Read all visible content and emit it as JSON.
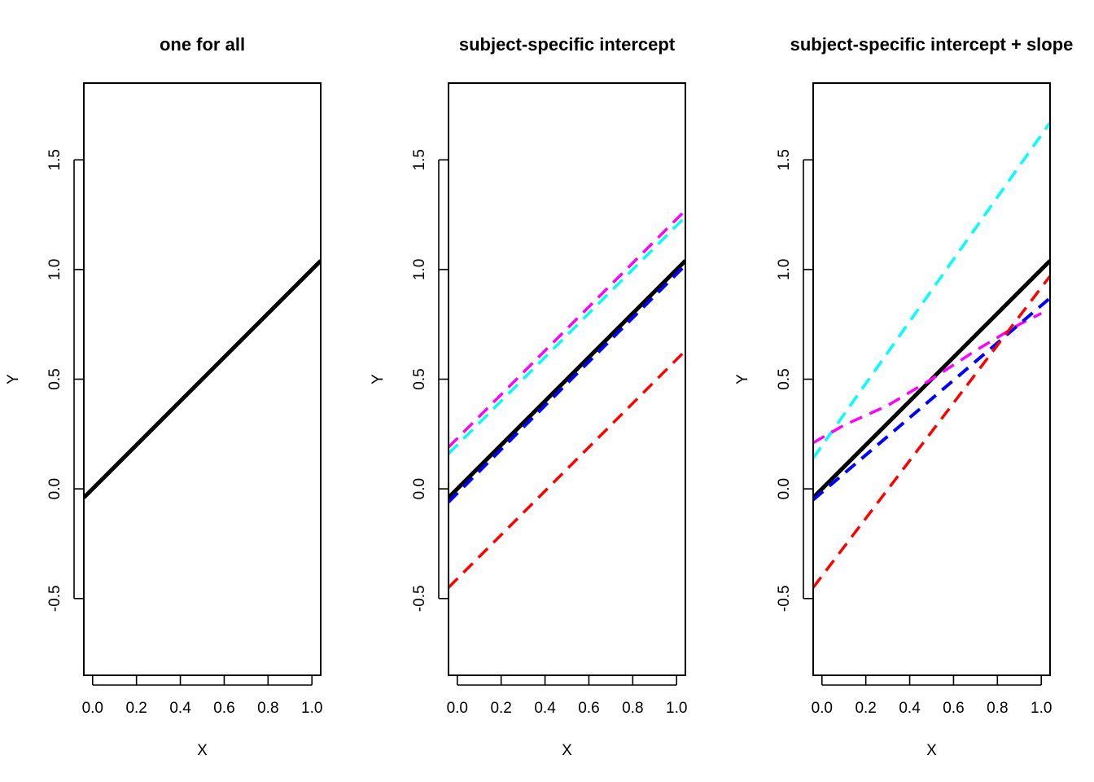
{
  "chart_data": [
    {
      "type": "line",
      "title": "one for all",
      "xlabel": "X",
      "ylabel": "Y",
      "xlim": [
        -0.04,
        1.04
      ],
      "ylim": [
        -0.85,
        1.85
      ],
      "xticks": [
        "0.0",
        "0.2",
        "0.4",
        "0.6",
        "0.8",
        "1.0"
      ],
      "yticks": [
        "-0.5",
        "0.0",
        "0.5",
        "1.0",
        "1.5"
      ],
      "grid": false,
      "series": [
        {
          "color": "#000000",
          "dashed": false,
          "width": 5,
          "x": [
            -0.04,
            1.04
          ],
          "y": [
            -0.04,
            1.04
          ]
        }
      ]
    },
    {
      "type": "line",
      "title": "subject-specific intercept",
      "xlabel": "X",
      "ylabel": "Y",
      "xlim": [
        -0.04,
        1.04
      ],
      "ylim": [
        -0.85,
        1.85
      ],
      "xticks": [
        "0.0",
        "0.2",
        "0.4",
        "0.6",
        "0.8",
        "1.0"
      ],
      "yticks": [
        "-0.5",
        "0.0",
        "0.5",
        "1.0",
        "1.5"
      ],
      "grid": false,
      "series": [
        {
          "color": "#000000",
          "dashed": false,
          "width": 5,
          "x": [
            -0.04,
            1.04
          ],
          "y": [
            -0.04,
            1.04
          ]
        },
        {
          "color": "#0000ff",
          "dashed": true,
          "width": 4,
          "x": [
            -0.04,
            1.04
          ],
          "y": [
            -0.06,
            1.02
          ]
        },
        {
          "color": "#ff00ff",
          "dashed": true,
          "width": 3.5,
          "x": [
            -0.04,
            1.04
          ],
          "y": [
            0.19,
            1.27
          ]
        },
        {
          "color": "#00ffff",
          "dashed": true,
          "width": 3.5,
          "x": [
            -0.04,
            1.04
          ],
          "y": [
            0.16,
            1.24
          ]
        },
        {
          "color": "#ff0000",
          "dashed": true,
          "width": 3.5,
          "x": [
            -0.04,
            1.04
          ],
          "y": [
            -0.45,
            0.63
          ]
        }
      ]
    },
    {
      "type": "line",
      "title": "subject-specific intercept + slope",
      "xlabel": "X",
      "ylabel": "Y",
      "xlim": [
        -0.04,
        1.04
      ],
      "ylim": [
        -0.85,
        1.85
      ],
      "xticks": [
        "0.0",
        "0.2",
        "0.4",
        "0.6",
        "0.8",
        "1.0"
      ],
      "yticks": [
        "-0.5",
        "0.0",
        "0.5",
        "1.0",
        "1.5"
      ],
      "grid": false,
      "series": [
        {
          "color": "#000000",
          "dashed": false,
          "width": 5,
          "x": [
            -0.04,
            1.04
          ],
          "y": [
            -0.04,
            1.04
          ]
        },
        {
          "color": "#00ffff",
          "dashed": true,
          "width": 3.5,
          "x": [
            -0.04,
            1.04
          ],
          "y": [
            0.14,
            1.67
          ]
        },
        {
          "color": "#ff00ff",
          "dashed": true,
          "width": 3.5,
          "x": [
            -0.04,
            0.1,
            0.3,
            0.5,
            0.7,
            0.9,
            1.0
          ],
          "y": [
            0.21,
            0.29,
            0.38,
            0.5,
            0.63,
            0.75,
            0.8
          ]
        },
        {
          "color": "#0000ff",
          "dashed": true,
          "width": 4,
          "x": [
            -0.04,
            1.04
          ],
          "y": [
            -0.05,
            0.87
          ]
        },
        {
          "color": "#ff0000",
          "dashed": true,
          "width": 3.5,
          "x": [
            -0.04,
            1.04
          ],
          "y": [
            -0.45,
            0.97
          ]
        }
      ]
    }
  ]
}
